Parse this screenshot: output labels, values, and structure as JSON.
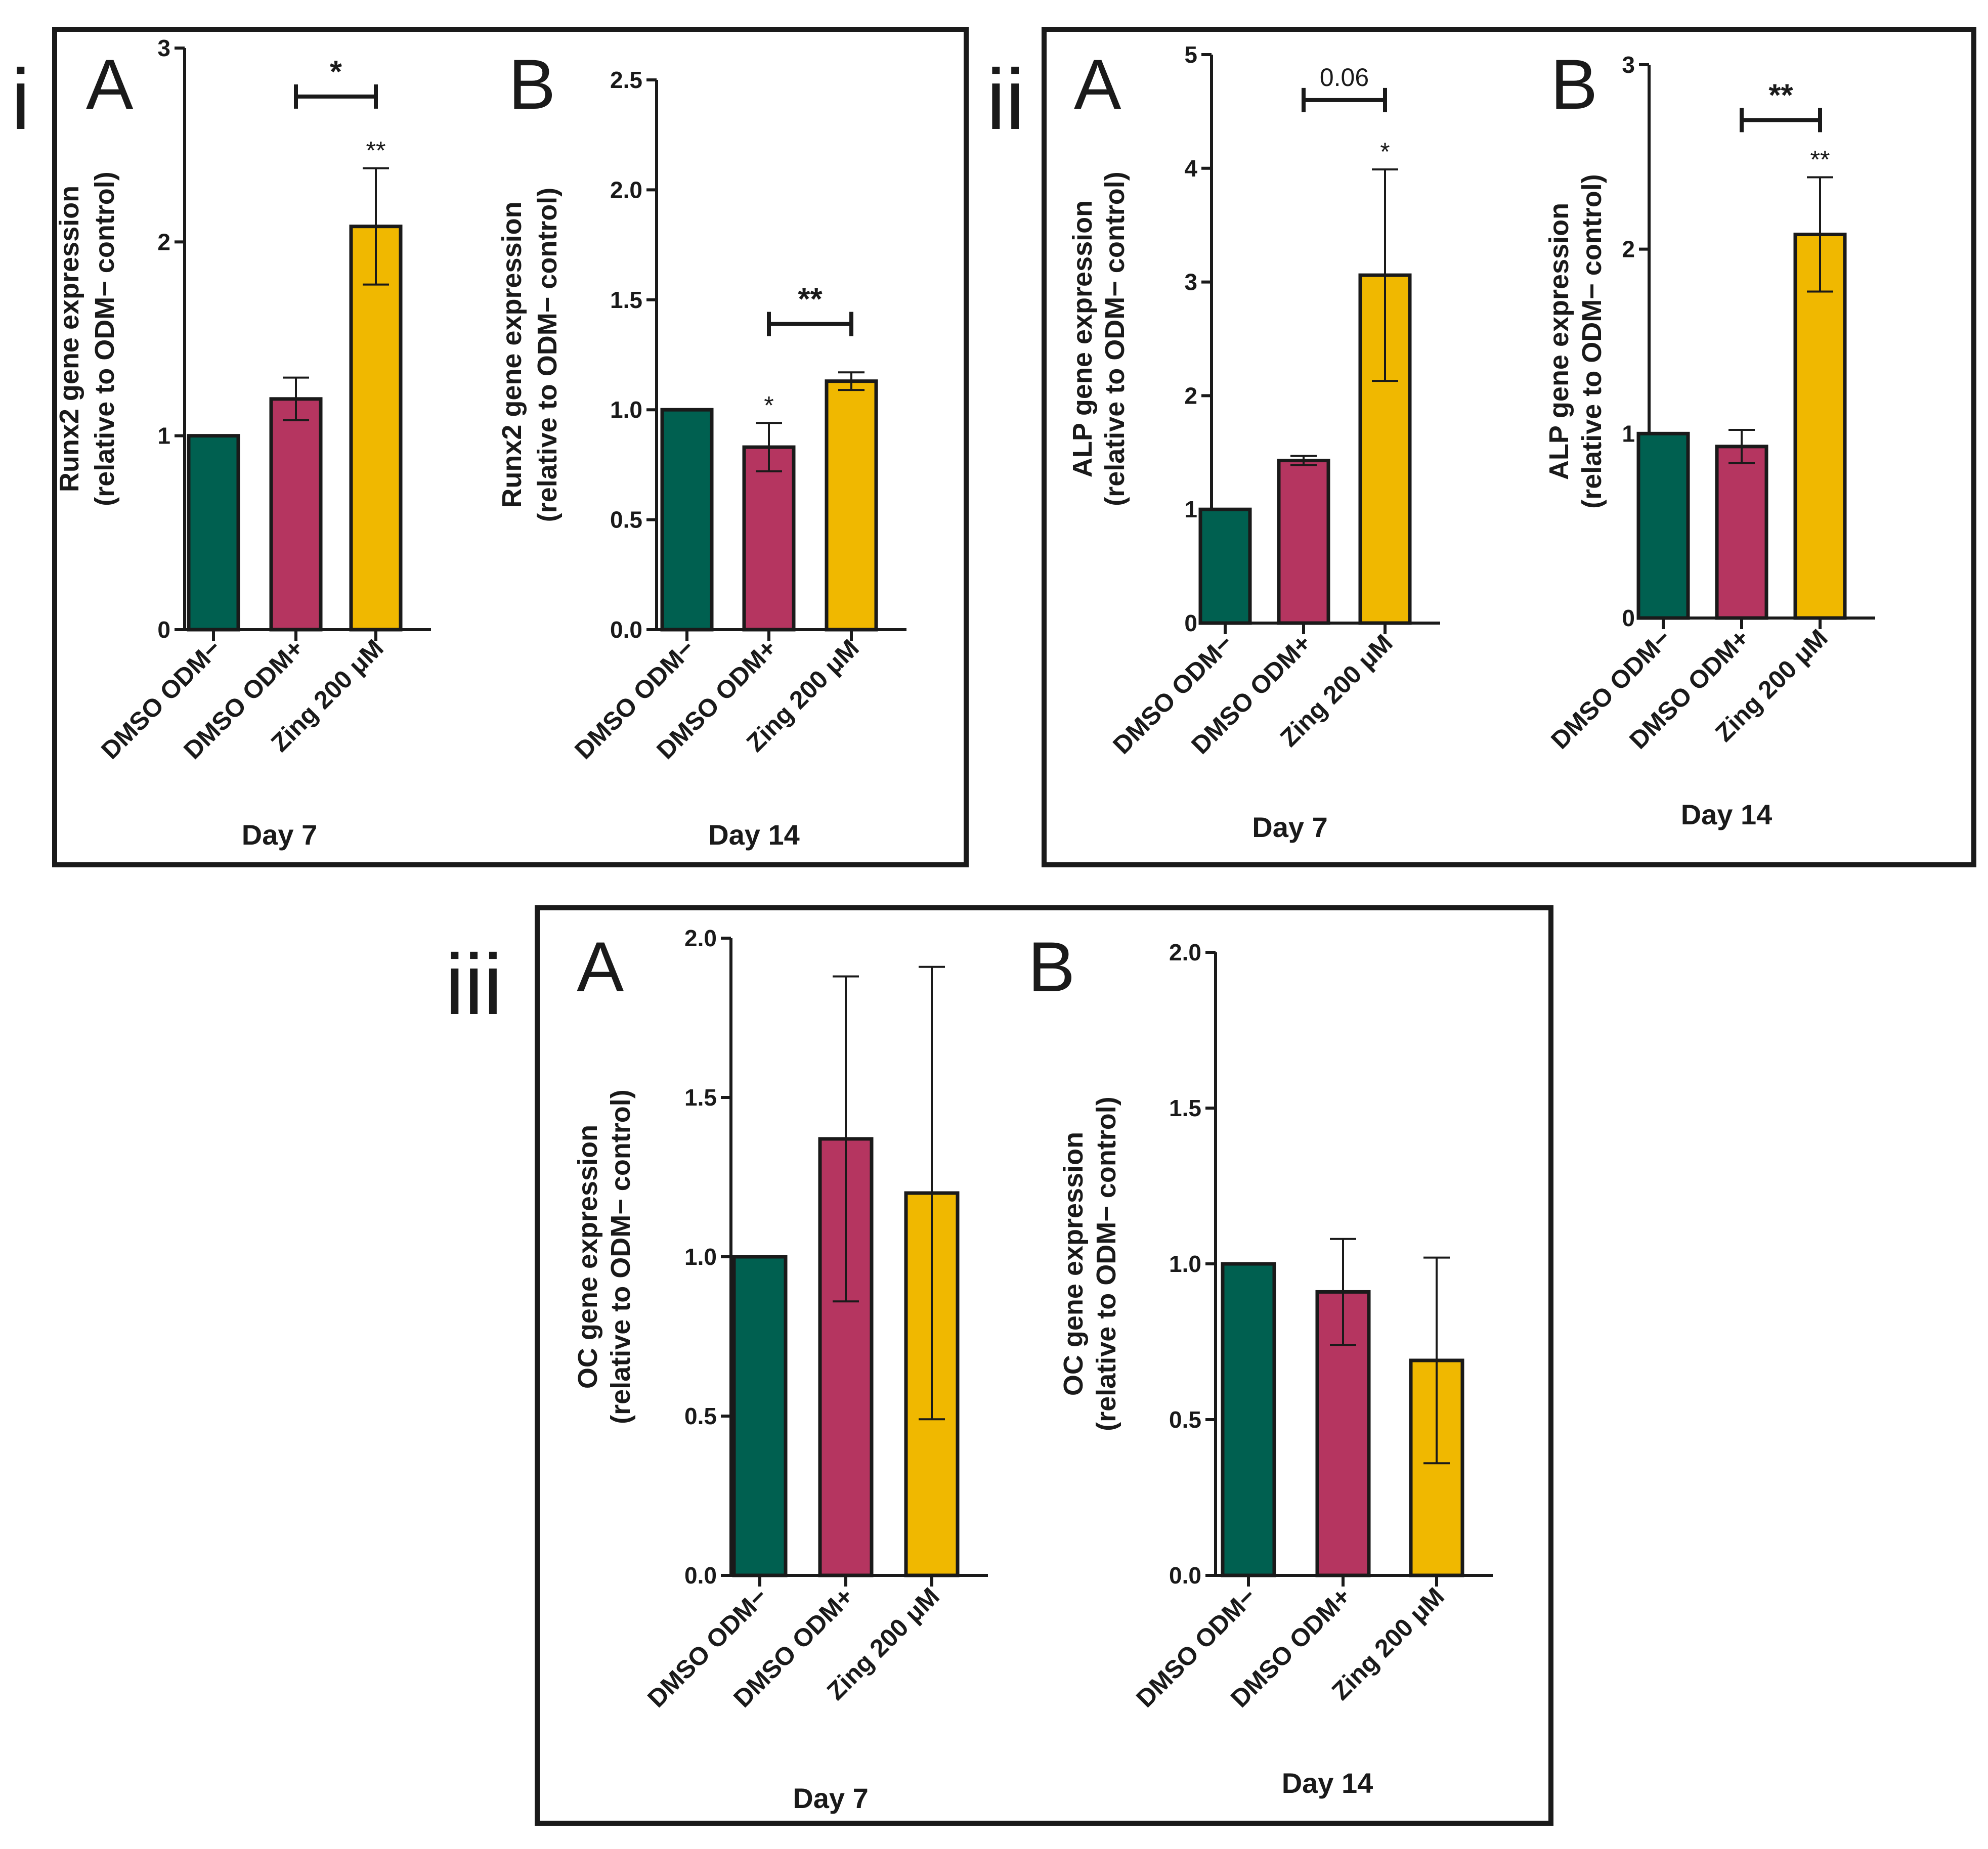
{
  "figure": {
    "panels": [
      {
        "label": "i",
        "subplots": [
          0,
          1
        ]
      },
      {
        "label": "ii",
        "subplots": [
          2,
          3
        ]
      },
      {
        "label": "iii",
        "subplots": [
          4,
          5
        ]
      }
    ]
  },
  "colors": {
    "DMSO ODM−": "#006050",
    "DMSO ODM+": "#b53560",
    "Zing 200 μM": "#f0b800"
  },
  "chart_data": [
    {
      "type": "bar",
      "panel": "i",
      "letter": "A",
      "categories": [
        "DMSO ODM−",
        "DMSO ODM+",
        "Zing 200 μM"
      ],
      "values": [
        1.0,
        1.19,
        2.08
      ],
      "errors": [
        0,
        0.11,
        0.3
      ],
      "ylim": [
        0,
        3
      ],
      "yticks": [
        0,
        1,
        2,
        3
      ],
      "ytick_labels": [
        "0",
        "1",
        "2",
        "3"
      ],
      "ylabel_line1": "Runx2 gene expression",
      "ylabel_line2": "(relative to ODM− control)",
      "xlabel": "Day 7",
      "bar_annotations": [
        null,
        null,
        "**"
      ],
      "brackets": [
        {
          "from": 1,
          "to": 2,
          "y": 2.75,
          "text": "*",
          "style": "bold"
        }
      ]
    },
    {
      "type": "bar",
      "panel": "i",
      "letter": "B",
      "categories": [
        "DMSO ODM−",
        "DMSO ODM+",
        "Zing 200 μM"
      ],
      "values": [
        1.0,
        0.83,
        1.13
      ],
      "errors": [
        0,
        0.11,
        0.04
      ],
      "ylim": [
        0,
        2.5
      ],
      "yticks": [
        0,
        0.5,
        1,
        1.5,
        2,
        2.5
      ],
      "ytick_labels": [
        "0.0",
        "0.5",
        "1.0",
        "1.5",
        "2.0",
        "2.5"
      ],
      "ylabel_line1": "Runx2 gene expression",
      "ylabel_line2": "(relative to ODM− control)",
      "xlabel": "Day 14",
      "bar_annotations": [
        null,
        "*",
        null
      ],
      "brackets": [
        {
          "from": 1,
          "to": 2,
          "y": 1.39,
          "text": "**",
          "style": "bold"
        }
      ]
    },
    {
      "type": "bar",
      "panel": "ii",
      "letter": "A",
      "categories": [
        "DMSO ODM−",
        "DMSO ODM+",
        "Zing 200 μM"
      ],
      "values": [
        1.0,
        1.43,
        3.06
      ],
      "errors": [
        0,
        0.04,
        0.93
      ],
      "ylim": [
        0,
        5
      ],
      "yticks": [
        0,
        1,
        2,
        3,
        4,
        5
      ],
      "ytick_labels": [
        "0",
        "1",
        "2",
        "3",
        "4",
        "5"
      ],
      "ylabel_line1": "ALP gene expression",
      "ylabel_line2": "(relative to ODM− control)",
      "xlabel": "Day 7",
      "bar_annotations": [
        null,
        null,
        "*"
      ],
      "brackets": [
        {
          "from": 1,
          "to": 2,
          "y": 4.6,
          "text": "0.06",
          "style": "thin"
        }
      ]
    },
    {
      "type": "bar",
      "panel": "ii",
      "letter": "B",
      "categories": [
        "DMSO ODM−",
        "DMSO ODM+",
        "Zing 200 μM"
      ],
      "values": [
        1.0,
        0.93,
        2.08
      ],
      "errors": [
        0,
        0.09,
        0.31
      ],
      "ylim": [
        0,
        3
      ],
      "yticks": [
        0,
        1,
        2,
        3
      ],
      "ytick_labels": [
        "0",
        "1",
        "2",
        "3"
      ],
      "ylabel_line1": "ALP gene expression",
      "ylabel_line2": "(relative to ODM− control)",
      "xlabel": "Day 14",
      "bar_annotations": [
        null,
        null,
        "**"
      ],
      "brackets": [
        {
          "from": 1,
          "to": 2,
          "y": 2.7,
          "text": "**",
          "style": "bold"
        }
      ]
    },
    {
      "type": "bar",
      "panel": "iii",
      "letter": "A",
      "categories": [
        "DMSO ODM−",
        "DMSO ODM+",
        "Zing 200 μM"
      ],
      "values": [
        1.0,
        1.37,
        1.2
      ],
      "errors": [
        0,
        0.51,
        0.71
      ],
      "ylim": [
        0,
        2
      ],
      "yticks": [
        0,
        0.5,
        1,
        1.5,
        2
      ],
      "ytick_labels": [
        "0.0",
        "0.5",
        "1.0",
        "1.5",
        "2.0"
      ],
      "ylabel_line1": "OC gene expression",
      "ylabel_line2": "(relative to ODM− control)",
      "xlabel": "Day 7",
      "bar_annotations": [
        null,
        null,
        null
      ],
      "brackets": []
    },
    {
      "type": "bar",
      "panel": "iii",
      "letter": "B",
      "categories": [
        "DMSO ODM−",
        "DMSO ODM+",
        "Zing 200 μM"
      ],
      "values": [
        1.0,
        0.91,
        0.69
      ],
      "errors": [
        0,
        0.17,
        0.33
      ],
      "ylim": [
        0,
        2
      ],
      "yticks": [
        0,
        0.5,
        1,
        1.5,
        2
      ],
      "ytick_labels": [
        "0.0",
        "0.5",
        "1.0",
        "1.5",
        "2.0"
      ],
      "ylabel_line1": "OC gene expression",
      "ylabel_line2": "(relative to ODM− control)",
      "xlabel": "Day 14",
      "bar_annotations": [
        null,
        null,
        null
      ],
      "brackets": []
    }
  ]
}
